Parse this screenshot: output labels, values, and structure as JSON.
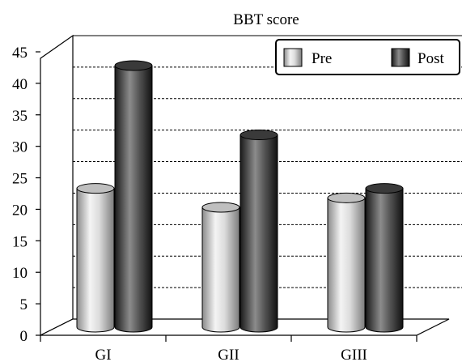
{
  "chart_data": {
    "type": "bar",
    "style": "3d-cylinder",
    "title": "BBT score",
    "categories": [
      "GI",
      "GII",
      "GIII"
    ],
    "series": [
      {
        "name": "Pre",
        "values": [
          21,
          18,
          19.5
        ],
        "color": "#d4d4d4"
      },
      {
        "name": "Post",
        "values": [
          40.5,
          29.5,
          21
        ],
        "color": "#4a4a4a"
      }
    ],
    "ylim": [
      0,
      45
    ],
    "yticks": [
      0,
      5,
      10,
      15,
      20,
      25,
      30,
      35,
      40,
      45
    ],
    "ytick_labels": [
      "0",
      "5",
      "10",
      "15",
      "20",
      "25",
      "30",
      "35",
      "40",
      "45"
    ],
    "grid": "dashed-horizontal",
    "legend": "top-right"
  }
}
